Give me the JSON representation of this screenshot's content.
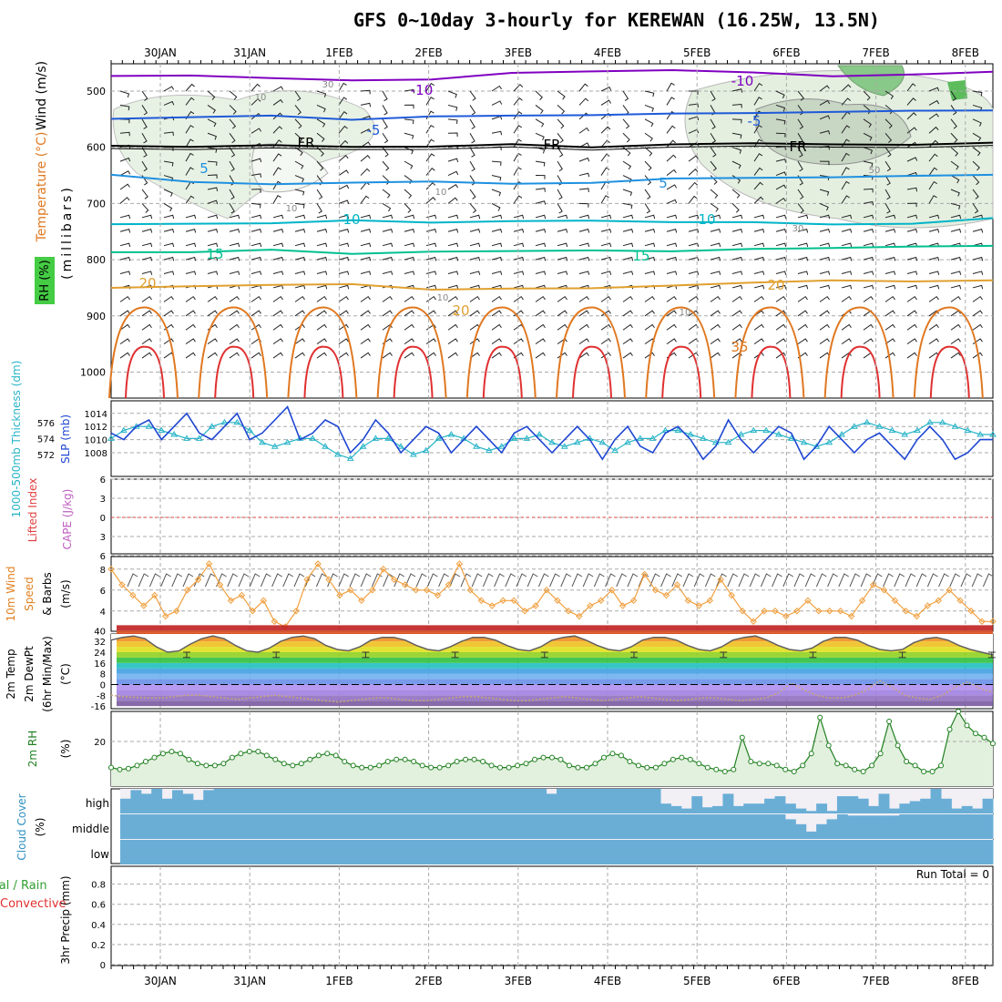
{
  "title": "GFS 0~10day 3-hourly for KEREWAN (16.25W, 13.5N)",
  "dates": [
    "30JAN",
    "31JAN",
    "1FEB",
    "2FEB",
    "3FEB",
    "4FEB",
    "5FEB",
    "6FEB",
    "7FEB",
    "8FEB"
  ],
  "colors": {
    "temp_m10": "#8000c0",
    "temp_m5": "#1e5ad8",
    "temp_fr": "#000000",
    "temp_5": "#1e90e0",
    "temp_10": "#00b4c8",
    "temp_15": "#00c090",
    "temp_20": "#e0a030",
    "temp_25": "#e07820",
    "temp_30": "#e03030",
    "slp": "#1e46d2",
    "thickness": "#28b4c8",
    "wind10": "#f0a040",
    "rh2m": "#208020",
    "cloud": "#6aaed6",
    "lifted": "#e04040"
  },
  "labels": {
    "upper_ylabel_wind": "Wind (m/s)",
    "upper_ylabel_temp": "Temperature (°C)",
    "upper_ylabel_rh": "RH (%)",
    "upper_ylabel_mb": "(millibars)",
    "slp_ylabel_thick": "1000-500mb Thickness (dm)",
    "slp_ylabel_slp": "SLP (mb)",
    "li_ylabel_li": "Lifted Index",
    "li_ylabel_cape": "CAPE (J/kg)",
    "wind_ylabel_1": "10m Wind",
    "wind_ylabel_2": "Speed",
    "wind_ylabel_3": "& Barbs",
    "wind_ylabel_4": "(m/s)",
    "temp_ylabel_1": "2m Temp",
    "temp_ylabel_2": "2m DewPt",
    "temp_ylabel_3": "(6hr Min/Max)",
    "temp_ylabel_4": "(°C)",
    "rh_ylabel_1": "2m RH",
    "rh_ylabel_2": "(%)",
    "cloud_ylabel_1": "Cloud Cover",
    "cloud_ylabel_2": "(%)",
    "cloud_high": "high",
    "cloud_middle": "middle",
    "cloud_low": "low",
    "precip_ylabel_1": "Total / Rain",
    "precip_ylabel_2": "Convective",
    "precip_ylabel_3": "3hr Precip (mm)",
    "run_total": "Run Total = 0"
  },
  "chart_data": [
    {
      "type": "line",
      "panel": "upper_air",
      "ylabel": "(millibars)",
      "yticks": [
        500,
        600,
        700,
        800,
        900,
        1000
      ],
      "contour_labels": [
        "-10",
        "-5",
        "FR",
        "5",
        "10",
        "15",
        "20",
        "25",
        "30",
        "35"
      ],
      "rh_contour_labels": [
        "10",
        "30",
        "50"
      ],
      "isotherms": [
        {
          "name": "-10",
          "pressure": [
            475,
            472,
            474,
            478,
            476,
            470,
            468,
            466,
            470,
            472,
            468,
            465
          ]
        },
        {
          "name": "-5",
          "pressure": [
            552,
            548,
            546,
            552,
            548,
            545,
            542,
            540,
            537,
            534,
            532,
            534
          ]
        },
        {
          "name": "FR",
          "pressure": [
            597,
            596,
            598,
            597,
            596,
            595,
            597,
            598,
            596,
            595,
            596,
            595
          ]
        },
        {
          "name": "5",
          "pressure": [
            652,
            660,
            664,
            662,
            658,
            662,
            660,
            656,
            654,
            652,
            654,
            652
          ]
        },
        {
          "name": "10",
          "pressure": [
            740,
            736,
            732,
            733,
            736,
            734,
            733,
            732,
            735,
            736,
            733,
            728
          ]
        },
        {
          "name": "15",
          "pressure": [
            790,
            786,
            785,
            787,
            788,
            786,
            784,
            785,
            784,
            781,
            779,
            776
          ]
        },
        {
          "name": "20",
          "pressure": [
            852,
            850,
            848,
            845,
            852,
            853,
            848,
            845,
            842,
            837,
            838,
            840
          ]
        }
      ]
    },
    {
      "type": "line",
      "panel": "slp_thickness",
      "ylabel": "SLP (mb)",
      "yticks_slp": [
        1008,
        1010,
        1012,
        1014
      ],
      "yticks_thickness": [
        572,
        574,
        576
      ],
      "series": [
        {
          "name": "SLP (mb)",
          "values": [
            1011,
            1010,
            1012,
            1013,
            1010,
            1012,
            1014,
            1011,
            1010,
            1012,
            1014,
            1010,
            1011,
            1013,
            1015,
            1010,
            1011,
            1013,
            1012,
            1008,
            1010,
            1013,
            1011,
            1008,
            1010,
            1012,
            1011,
            1008,
            1010,
            1012,
            1010,
            1008,
            1011,
            1012,
            1010,
            1008,
            1010,
            1012,
            1010,
            1007,
            1010,
            1012,
            1009,
            1008,
            1011,
            1012,
            1010,
            1007,
            1009,
            1013,
            1010,
            1008,
            1010,
            1012,
            1011,
            1007,
            1009,
            1012,
            1010,
            1008,
            1010,
            1011,
            1009,
            1007,
            1010,
            1012,
            1010,
            1007,
            1008,
            1010,
            1010
          ]
        },
        {
          "name": "1000-500mb Thickness (dm)",
          "values": [
            574,
            575,
            575.5,
            575.5,
            575,
            574.5,
            574,
            574,
            575.5,
            576,
            576,
            575,
            573.5,
            573,
            573.5,
            574,
            574,
            573,
            572,
            571.5,
            573,
            574,
            574,
            573,
            572,
            572.5,
            574,
            574.5,
            574,
            573,
            572.5,
            573,
            574,
            574,
            574.5,
            573.5,
            573,
            573.5,
            574,
            573.5,
            572.5,
            573.5,
            574,
            574,
            575,
            575,
            574.5,
            574,
            573.5,
            573.5,
            574.5,
            575,
            575,
            574.5,
            574,
            573.5,
            573,
            573.5,
            574.5,
            575.5,
            576,
            575.5,
            575,
            574.5,
            575,
            576,
            576,
            575.5,
            575,
            574.5,
            574.5
          ]
        }
      ]
    },
    {
      "type": "line",
      "panel": "lifted_index",
      "ylabel": "Lifted Index",
      "yticks": [
        -6,
        -3,
        0,
        3,
        6
      ],
      "series": []
    },
    {
      "type": "line",
      "panel": "wind10m",
      "ylabel": "(m/s)",
      "yticks": [
        4,
        6,
        8
      ],
      "series": [
        {
          "name": "10m Wind Speed",
          "values": [
            8,
            6.5,
            5.5,
            4.5,
            5.5,
            3.5,
            4,
            6,
            7,
            8.5,
            6.5,
            5,
            5.5,
            4,
            5,
            3,
            2.5,
            4,
            7,
            8.5,
            7,
            5.5,
            6,
            5,
            6,
            8,
            7,
            6.5,
            6,
            6,
            5.5,
            6.5,
            8.5,
            6,
            5,
            4.5,
            5,
            5,
            4,
            4.5,
            6,
            5,
            4,
            3.5,
            4.5,
            5,
            6,
            4.5,
            5,
            7.5,
            6,
            5.5,
            6.5,
            5,
            4.5,
            5,
            7,
            5.5,
            4,
            3,
            4,
            4,
            3.5,
            4,
            5,
            4,
            4,
            4,
            3.5,
            5,
            6.5,
            6,
            5,
            4,
            3.5,
            4.5,
            5,
            6,
            5,
            4,
            3,
            3
          ]
        }
      ]
    },
    {
      "type": "area",
      "panel": "temp2m",
      "ylabel": "(°C)",
      "yticks": [
        -16,
        -8,
        0,
        8,
        16,
        24,
        32,
        40
      ],
      "series": [
        {
          "name": "2m Temp",
          "values": [
            33,
            35,
            36,
            34,
            28,
            24,
            25,
            30,
            34,
            36,
            34,
            29,
            25,
            24,
            27,
            32,
            35,
            36,
            34,
            29,
            26,
            25,
            28,
            33,
            35,
            35,
            33,
            29,
            26,
            25,
            28,
            32,
            35,
            35,
            33,
            29,
            26,
            25,
            28,
            33,
            35,
            36,
            33,
            29,
            26,
            25,
            28,
            33,
            35,
            35,
            33,
            29,
            26,
            25,
            28,
            33,
            35,
            36,
            33,
            29,
            26,
            25,
            27,
            32,
            35,
            35,
            33,
            29,
            26,
            25,
            26,
            31,
            34,
            35,
            33,
            29,
            26,
            24,
            22
          ]
        },
        {
          "name": "2m DewPt",
          "values": [
            -8,
            -9,
            -9.5,
            -10,
            -10,
            -9,
            -8,
            -8,
            -9,
            -10,
            -11,
            -10,
            -9,
            -8,
            -9,
            -10,
            -11,
            -12,
            -13,
            -12,
            -11,
            -10,
            -10,
            -11,
            -12,
            -12,
            -11,
            -10,
            -9,
            -9,
            -10,
            -11,
            -12,
            -12,
            -11,
            -10,
            -9,
            -10,
            -11,
            -12,
            -11,
            -10,
            -9,
            -10,
            -11,
            -12,
            -11,
            -10,
            -10,
            -11,
            -12,
            -11,
            -10,
            -6,
            1,
            -4,
            -8,
            -10,
            -10,
            -8,
            -4,
            3,
            -2,
            -8,
            -10,
            -11,
            -8,
            -2,
            2,
            -3,
            -6
          ]
        }
      ]
    },
    {
      "type": "line",
      "panel": "rh2m",
      "ylabel": "(%)",
      "yticks": [
        20
      ],
      "series": [
        {
          "name": "2m RH",
          "values": [
            7,
            6,
            6.5,
            8,
            10,
            12,
            14,
            15,
            14,
            11,
            9,
            8,
            8,
            9,
            12,
            14,
            15,
            15,
            13,
            11,
            9,
            8,
            9,
            11,
            13,
            14,
            13,
            10,
            8,
            7,
            7,
            8,
            10,
            11,
            11,
            10,
            8,
            7,
            7,
            8,
            10,
            11,
            11,
            10,
            8,
            7,
            7,
            8,
            9,
            11,
            12,
            12,
            11,
            8,
            7,
            7,
            9,
            12,
            14,
            13,
            10,
            8,
            7,
            7,
            9,
            11,
            12,
            11,
            9,
            7,
            6,
            5,
            6,
            22,
            10,
            9,
            9,
            8,
            6,
            5,
            8,
            14,
            32,
            18,
            9,
            8,
            6,
            5,
            8,
            14,
            30,
            18,
            10,
            8,
            5,
            5,
            8,
            26,
            35,
            28,
            24,
            22,
            19
          ]
        }
      ]
    },
    {
      "type": "heatmap",
      "panel": "cloud_cover",
      "ylabel": "(%)",
      "rows": [
        "high",
        "middle",
        "low"
      ],
      "series": [
        {
          "name": "high",
          "values": [
            60,
            95,
            80,
            100,
            60,
            95,
            80,
            55,
            95,
            100,
            100,
            100,
            100,
            100,
            100,
            100,
            100,
            100,
            100,
            100,
            100,
            100,
            100,
            100,
            100,
            100,
            100,
            100,
            100,
            100,
            100,
            100,
            100,
            100,
            100,
            100,
            100,
            100,
            100,
            100,
            100,
            80,
            100,
            100,
            100,
            100,
            100,
            100,
            100,
            100,
            100,
            100,
            40,
            30,
            20,
            70,
            25,
            30,
            80,
            30,
            40,
            40,
            60,
            70,
            40,
            20,
            10,
            40,
            10,
            70,
            70,
            60,
            30,
            80,
            20,
            40,
            50,
            60,
            100,
            60,
            20,
            30,
            20,
            60
          ]
        },
        {
          "name": "middle",
          "values": [
            100,
            100,
            100,
            100,
            100,
            100,
            100,
            100,
            100,
            100,
            100,
            100,
            100,
            100,
            100,
            100,
            100,
            100,
            100,
            100,
            100,
            100,
            100,
            100,
            100,
            100,
            100,
            100,
            100,
            100,
            100,
            100,
            100,
            100,
            100,
            100,
            100,
            100,
            100,
            100,
            100,
            100,
            100,
            100,
            100,
            100,
            100,
            100,
            100,
            100,
            100,
            100,
            100,
            100,
            100,
            100,
            100,
            100,
            100,
            100,
            100,
            100,
            100,
            100,
            80,
            60,
            30,
            60,
            80,
            100,
            95,
            95,
            95,
            95,
            95,
            100,
            100,
            100,
            100,
            100,
            100,
            100,
            100,
            100
          ]
        },
        {
          "name": "low",
          "values": [
            100,
            100,
            100,
            100,
            100,
            100,
            100,
            100,
            100,
            100,
            100,
            100,
            100,
            100,
            100,
            100,
            100,
            100,
            100,
            100,
            100,
            100,
            100,
            100,
            100,
            100,
            100,
            100,
            100,
            100,
            100,
            100,
            100,
            100,
            100,
            100,
            100,
            100,
            100,
            100,
            100,
            100,
            100,
            100,
            100,
            100,
            100,
            100,
            100,
            100,
            100,
            100,
            100,
            100,
            100,
            100,
            100,
            100,
            100,
            100,
            100,
            100,
            100,
            100,
            100,
            100,
            100,
            100,
            100,
            100,
            100,
            100,
            100,
            100,
            100,
            100,
            100,
            100,
            100,
            100,
            100,
            100,
            100,
            100
          ]
        }
      ]
    },
    {
      "type": "bar",
      "panel": "precip",
      "ylabel": "3hr Precip (mm)",
      "yticks": [
        0,
        0.2,
        0.4,
        0.6,
        0.8
      ],
      "ylim": [
        0,
        0.95
      ],
      "series": [
        {
          "name": "Total / Rain",
          "values": []
        },
        {
          "name": "Convective",
          "values": []
        }
      ]
    }
  ]
}
